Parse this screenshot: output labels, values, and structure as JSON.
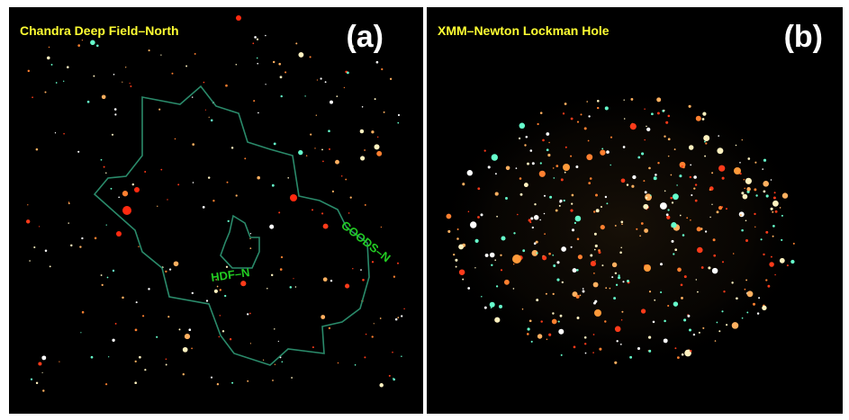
{
  "panels": [
    {
      "title": "Chandra Deep Field–North",
      "letter": "(a)",
      "regions": [
        {
          "label": "GOODS–N",
          "color": "#2a8a6a"
        },
        {
          "label": "HDF–N",
          "color": "#2a8a6a"
        }
      ]
    },
    {
      "title": "XMM–Newton Lockman Hole",
      "letter": "(b)"
    }
  ],
  "colors": {
    "background": "#000000",
    "title_text": "#ffff33",
    "letter_text": "#ffffff",
    "region_label": "#22cc22",
    "region_outline": "#2a8a6a",
    "source_colors": [
      "#ff3b1a",
      "#ffb060",
      "#fff2c0",
      "#ff8030",
      "#66ffcc",
      "#ffffff"
    ]
  }
}
